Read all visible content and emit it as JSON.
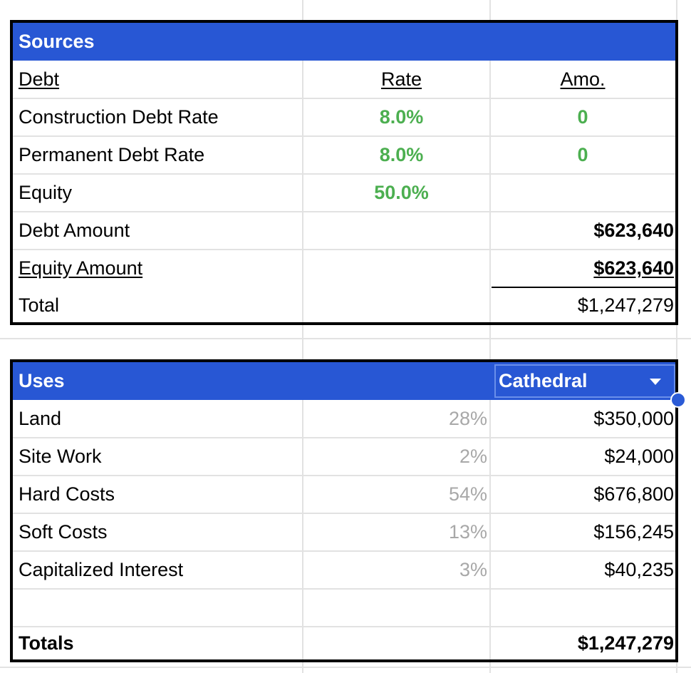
{
  "sources": {
    "title": "Sources",
    "headers": {
      "debt": "Debt",
      "rate": "Rate",
      "amount": "Amo."
    },
    "rows": [
      {
        "label": "Construction Debt Rate",
        "rate": "8.0%",
        "amount": "0"
      },
      {
        "label": "Permanent Debt Rate",
        "rate": "8.0%",
        "amount": "0"
      },
      {
        "label": "Equity",
        "rate": "50.0%",
        "amount": ""
      },
      {
        "label": "Debt Amount",
        "rate": "",
        "amount": "$623,640"
      },
      {
        "label": "Equity Amount",
        "rate": "",
        "amount": "$623,640"
      },
      {
        "label": "Total",
        "rate": "",
        "amount": "$1,247,279"
      }
    ],
    "rate_color": "#4caf50"
  },
  "uses": {
    "title": "Uses",
    "selector": {
      "value": "Cathedral",
      "icon": "chevron-down-icon"
    },
    "rows": [
      {
        "label": "Land",
        "pct": "28%",
        "amount": "$350,000"
      },
      {
        "label": "Site Work",
        "pct": "2%",
        "amount": "$24,000"
      },
      {
        "label": "Hard Costs",
        "pct": "54%",
        "amount": "$676,800"
      },
      {
        "label": "Soft Costs",
        "pct": "13%",
        "amount": "$156,245"
      },
      {
        "label": "Capitalized Interest",
        "pct": "3%",
        "amount": "$40,235"
      }
    ],
    "totals": {
      "label": "Totals",
      "amount": "$1,247,279"
    }
  },
  "colors": {
    "header_blue": "#2857d4",
    "selection_handle": "#2b5bd6",
    "pct_grey": "#a8a8a8"
  }
}
